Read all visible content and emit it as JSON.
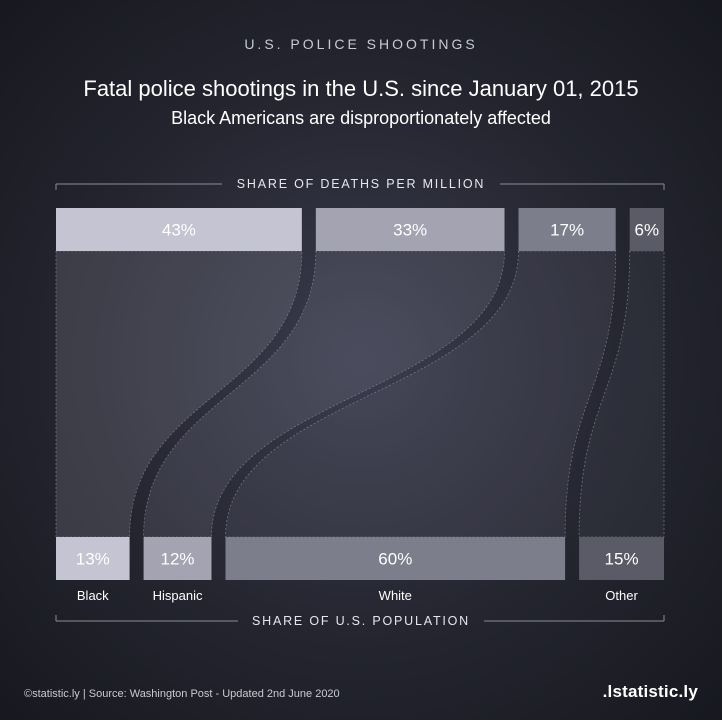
{
  "header": {
    "kicker": "U.S. POLICE SHOOTINGS",
    "title": "Fatal police shootings in the U.S. since January 01, 2015",
    "subtitle": "Black Americans are disproportionately affected"
  },
  "footer": {
    "source": "©statistic.ly | Source: Washington Post - Updated 2nd June 2020",
    "brand": ".lstatistic.ly"
  },
  "colors": {
    "black_group": "#c4c4d2",
    "hispanic_group": "#a3a3b2",
    "white_group": "#7d7e8c",
    "other_group": "#5a5b67"
  },
  "chart_data": {
    "type": "sankey",
    "top_label": "SHARE OF DEATHS PER MILLION",
    "bottom_label": "SHARE OF U.S. POPULATION",
    "groups": [
      {
        "name": "Black",
        "share_of_deaths_per_million": 43,
        "share_of_population": 13
      },
      {
        "name": "Hispanic",
        "share_of_deaths_per_million": 33,
        "share_of_population": 12
      },
      {
        "name": "White",
        "share_of_deaths_per_million": 17,
        "share_of_population": 60
      },
      {
        "name": "Other",
        "share_of_deaths_per_million": 6,
        "share_of_population": 15
      }
    ],
    "unit": "%"
  }
}
